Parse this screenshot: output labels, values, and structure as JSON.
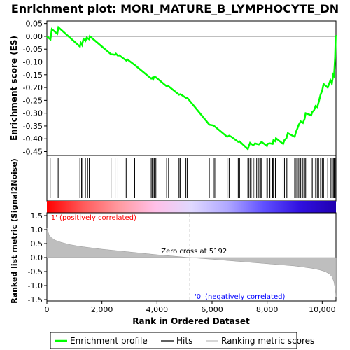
{
  "chart_data": {
    "type": "line",
    "title": "Enrichment plot: MORI_MATURE_B_LYMPHOCYTE_DN",
    "xlabel": "Rank in Ordered Dataset",
    "ylabel_top": "Enrichment score (ES)",
    "ylabel_bottom": "Ranked list metric (Signal2Noise)",
    "x_range": [
      0,
      10500
    ],
    "x_ticks": [
      0,
      2000,
      4000,
      6000,
      8000,
      10000
    ],
    "x_tick_labels": [
      "0",
      "2,000",
      "4,000",
      "6,000",
      "8,000",
      "10,000"
    ],
    "es_ylim": [
      -0.45,
      0.05
    ],
    "es_ticks": [
      0.05,
      0.0,
      -0.05,
      -0.1,
      -0.15,
      -0.2,
      -0.25,
      -0.3,
      -0.35,
      -0.4,
      -0.45
    ],
    "es_tick_labels": [
      "0.05",
      "0.00",
      "-0.05",
      "-0.10",
      "-0.15",
      "-0.20",
      "-0.25",
      "-0.30",
      "-0.35",
      "-0.40",
      "-0.45"
    ],
    "metric_ylim": [
      -1.5,
      1.5
    ],
    "metric_ticks": [
      1.5,
      1.0,
      0.5,
      0.0,
      -0.5,
      -1.0,
      -1.5
    ],
    "metric_tick_labels": [
      "1.5",
      "1.0",
      "0.5",
      "0.0",
      "-0.5",
      "-1.0",
      "-1.5"
    ],
    "series": [
      {
        "name": "Enrichment profile",
        "color": "#00ff00",
        "x": [
          0,
          130,
          180,
          380,
          420,
          1200,
          1230,
          1280,
          1330,
          1400,
          1450,
          1540,
          1560,
          2330,
          2480,
          2510,
          2580,
          2630,
          2890,
          2920,
          3190,
          3790,
          3830,
          3860,
          3900,
          3960,
          4350,
          4420,
          4800,
          4850,
          5050,
          5100,
          5900,
          6050,
          6100,
          6550,
          6620,
          6700,
          6950,
          7000,
          7300,
          7330,
          7380,
          7420,
          7500,
          7560,
          7620,
          7700,
          7760,
          7800,
          7990,
          8010,
          8100,
          8200,
          8230,
          8300,
          8320,
          8580,
          8630,
          8700,
          8750,
          9000,
          9050,
          9100,
          9150,
          9220,
          9300,
          9360,
          9400,
          9600,
          9640,
          9700,
          9760,
          9820,
          9870,
          9940,
          10000,
          10050,
          10200,
          10300,
          10350,
          10400,
          10430,
          10450,
          10470,
          10480,
          10490,
          10500
        ],
        "y": [
          0.0,
          -0.012,
          0.028,
          0.01,
          0.035,
          -0.04,
          -0.025,
          -0.034,
          -0.01,
          -0.018,
          -0.005,
          -0.012,
          0.0,
          -0.07,
          -0.072,
          -0.068,
          -0.076,
          -0.074,
          -0.095,
          -0.09,
          -0.112,
          -0.165,
          -0.162,
          -0.168,
          -0.158,
          -0.16,
          -0.195,
          -0.195,
          -0.228,
          -0.226,
          -0.24,
          -0.24,
          -0.345,
          -0.348,
          -0.352,
          -0.392,
          -0.388,
          -0.392,
          -0.412,
          -0.41,
          -0.44,
          -0.43,
          -0.416,
          -0.42,
          -0.425,
          -0.418,
          -0.42,
          -0.422,
          -0.416,
          -0.412,
          -0.428,
          -0.42,
          -0.418,
          -0.42,
          -0.405,
          -0.41,
          -0.398,
          -0.42,
          -0.405,
          -0.398,
          -0.378,
          -0.392,
          -0.372,
          -0.36,
          -0.345,
          -0.332,
          -0.338,
          -0.322,
          -0.3,
          -0.308,
          -0.295,
          -0.29,
          -0.272,
          -0.276,
          -0.258,
          -0.228,
          -0.212,
          -0.186,
          -0.2,
          -0.172,
          -0.185,
          -0.15,
          -0.155,
          -0.12,
          -0.08,
          -0.04,
          0.004,
          0.0
        ]
      }
    ],
    "hits": [
      120,
      410,
      1200,
      1260,
      1300,
      1400,
      1480,
      1540,
      2330,
      2480,
      2580,
      2880,
      3190,
      3790,
      3830,
      3860,
      3900,
      3960,
      4350,
      4420,
      4800,
      4840,
      5050,
      5100,
      5900,
      6050,
      6100,
      6550,
      6620,
      6950,
      7000,
      7300,
      7330,
      7380,
      7420,
      7500,
      7560,
      7620,
      7700,
      7760,
      7800,
      7990,
      8010,
      8100,
      8200,
      8230,
      8300,
      8320,
      8580,
      8630,
      8700,
      8750,
      9000,
      9050,
      9100,
      9150,
      9220,
      9300,
      9360,
      9400,
      9600,
      9640,
      9700,
      9760,
      9820,
      9870,
      9940,
      10000,
      10050,
      10200,
      10300,
      10350,
      10400,
      10430,
      10450,
      10470
    ],
    "hits_color": "#000000",
    "metric_color": "#bebebe",
    "metric_curve": {
      "x": [
        0,
        30,
        80,
        150,
        300,
        500,
        800,
        1200,
        1600,
        2000,
        2500,
        3000,
        3500,
        4000,
        4500,
        5192,
        6000,
        6500,
        7000,
        7500,
        8000,
        8500,
        9000,
        9300,
        9600,
        9900,
        10100,
        10250,
        10350,
        10420,
        10470,
        10500
      ],
      "y": [
        1.05,
        0.95,
        0.82,
        0.72,
        0.62,
        0.55,
        0.47,
        0.4,
        0.35,
        0.3,
        0.25,
        0.2,
        0.15,
        0.1,
        0.06,
        0.0,
        -0.06,
        -0.1,
        -0.14,
        -0.18,
        -0.22,
        -0.26,
        -0.3,
        -0.34,
        -0.38,
        -0.44,
        -0.5,
        -0.58,
        -0.68,
        -0.85,
        -1.1,
        -1.4
      ]
    },
    "zero_cross_label": "Zero cross at 5192",
    "zero_cross": 5192,
    "pos_label": "'1' (positively correlated)",
    "neg_label": "'0' (negatively correlated)",
    "legend": [
      {
        "label": "Enrichment profile",
        "color": "#00ff00"
      },
      {
        "label": "Hits",
        "color": "#000000"
      },
      {
        "label": "Ranking metric scores",
        "color": "#bebebe"
      }
    ],
    "heatmap_stops": [
      "#ff0000",
      "#ff5a5a",
      "#ff9aa0",
      "#ffc0e8",
      "#e0d8ff",
      "#b0a8ff",
      "#6050ff",
      "#3010e0",
      "#2000b0"
    ]
  }
}
